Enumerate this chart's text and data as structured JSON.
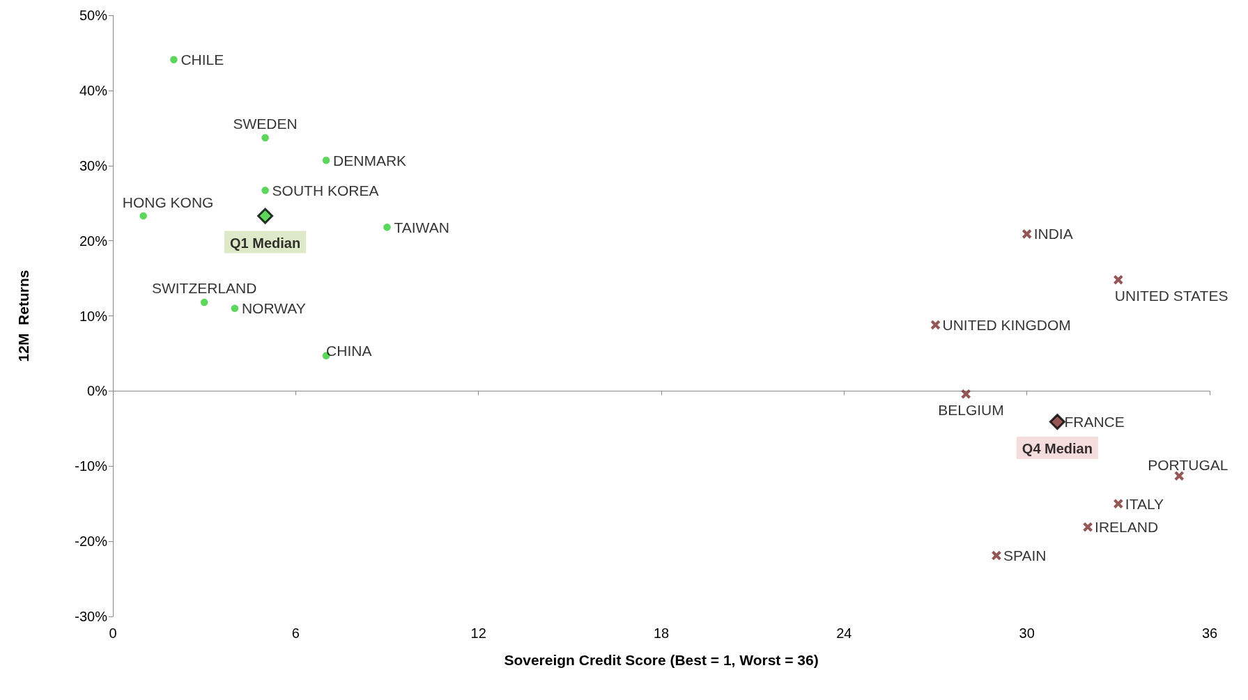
{
  "chart_data": {
    "type": "scatter",
    "xlabel": "Sovereign Credit Score (Best = 1, Worst = 36)",
    "ylabel": "12M  Returns",
    "xlim": [
      0,
      36
    ],
    "xticks": [
      0,
      6,
      12,
      18,
      24,
      30,
      36
    ],
    "ylim": [
      -30,
      50
    ],
    "yticks": [
      {
        "value": -30,
        "label": "-30%"
      },
      {
        "value": -20,
        "label": "-20%"
      },
      {
        "value": -10,
        "label": "-10%"
      },
      {
        "value": 0,
        "label": "0%"
      },
      {
        "value": 10,
        "label": "10%"
      },
      {
        "value": 20,
        "label": "20%"
      },
      {
        "value": 30,
        "label": "30%"
      },
      {
        "value": 40,
        "label": "40%"
      },
      {
        "value": 50,
        "label": "50%"
      }
    ],
    "legend": false,
    "series": [
      {
        "color": "#33cc33",
        "marker": "circle",
        "x": [
          2,
          5,
          7,
          5,
          1,
          9,
          3,
          4,
          7
        ],
        "values": [
          44.1,
          33.7,
          30.7,
          26.7,
          23.3,
          21.8,
          11.8,
          11.0,
          4.7
        ]
      },
      {
        "color": "#7b2c2c",
        "marker": "cross",
        "x": [
          30,
          33,
          27,
          28,
          31,
          35,
          33,
          32,
          29
        ],
        "values": [
          20.9,
          14.8,
          8.8,
          -0.4,
          null,
          -11.3,
          -15.0,
          -18.1,
          -21.9
        ]
      },
      {
        "name": "Q1 Median",
        "color": "#33cc33",
        "marker": "diamond",
        "x": [
          5
        ],
        "values": [
          23.3
        ]
      },
      {
        "name": "Q4 Median",
        "color": "#7b2c2c",
        "marker": "diamond",
        "x": [
          31
        ],
        "values": [
          -4.1
        ]
      }
    ],
    "annotations": [
      {
        "text": "CHILE",
        "x": 2,
        "y": 44.1
      },
      {
        "text": "SWEDEN",
        "x": 5,
        "y": 33.7
      },
      {
        "text": "DENMARK",
        "x": 7,
        "y": 30.7
      },
      {
        "text": "SOUTH KOREA",
        "x": 5,
        "y": 26.7
      },
      {
        "text": "HONG KONG",
        "x": 1,
        "y": 23.3
      },
      {
        "text": "TAIWAN",
        "x": 9,
        "y": 21.8
      },
      {
        "text": "SWITZERLAND",
        "x": 3,
        "y": 11.8
      },
      {
        "text": "NORWAY",
        "x": 4,
        "y": 11.0
      },
      {
        "text": "CHINA",
        "x": 7,
        "y": 4.7
      },
      {
        "text": "INDIA",
        "x": 30,
        "y": 20.9
      },
      {
        "text": "UNITED STATES",
        "x": 33,
        "y": 14.8
      },
      {
        "text": "UNITED KINGDOM",
        "x": 27,
        "y": 8.8
      },
      {
        "text": "BELGIUM",
        "x": 28,
        "y": -0.4
      },
      {
        "text": "FRANCE",
        "x": 31,
        "y": -4.1
      },
      {
        "text": "PORTUGAL",
        "x": 35,
        "y": -11.3
      },
      {
        "text": "ITALY",
        "x": 33,
        "y": -15.0
      },
      {
        "text": "IRELAND",
        "x": 32,
        "y": -18.1
      },
      {
        "text": "SPAIN",
        "x": 29,
        "y": -21.9
      }
    ]
  }
}
